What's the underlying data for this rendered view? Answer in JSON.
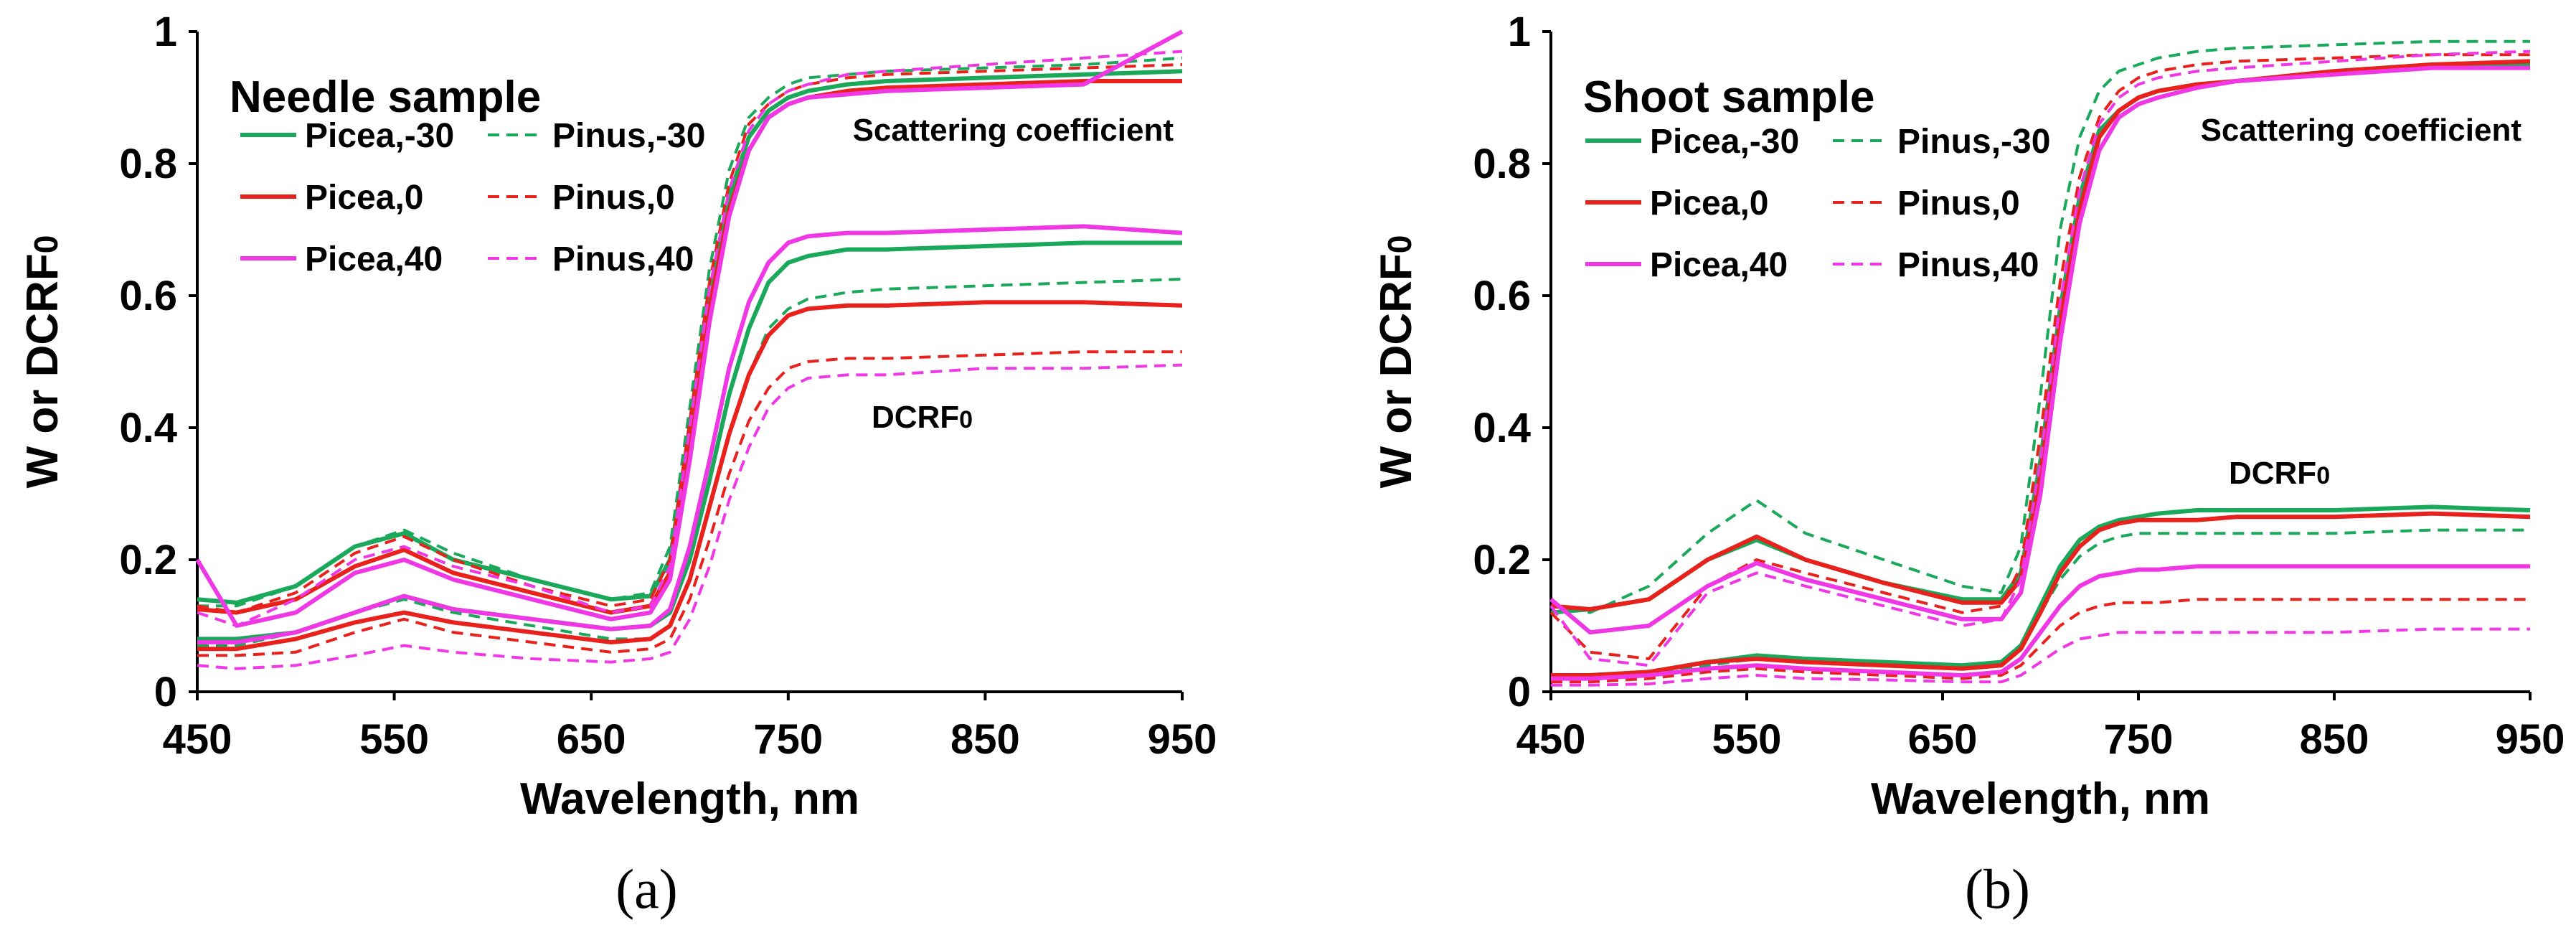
{
  "colors": {
    "Picea,-30": "#1aa85a",
    "Pinus,-30": "#1aa85a",
    "Picea,0": "#e8211c",
    "Pinus,0": "#e8211c",
    "Picea,40": "#f037e6",
    "Pinus,40": "#f037e6"
  },
  "chart_data": [
    {
      "type": "line",
      "panel_label": "(a)",
      "inset_title": "Needle sample",
      "xlabel": "Wavelength, nm",
      "ylabel": "W or DCRF0",
      "xlim": [
        450,
        950
      ],
      "ylim": [
        0,
        1
      ],
      "xticks": [
        "450",
        "550",
        "650",
        "750",
        "850",
        "950"
      ],
      "yticks": [
        "0",
        "0.2",
        "0.4",
        "0.6",
        "0.8",
        "1"
      ],
      "annotations": [
        "Scattering coefficient",
        "DCRF0"
      ],
      "legend": [
        "Picea,-30",
        "Pinus,-30",
        "Picea,0",
        "Pinus,0",
        "Picea,40",
        "Pinus,40"
      ],
      "x": [
        450,
        470,
        500,
        530,
        555,
        580,
        620,
        660,
        680,
        690,
        700,
        710,
        720,
        730,
        740,
        750,
        760,
        780,
        800,
        850,
        900,
        950
      ],
      "series": [
        {
          "name": "Picea,-30",
          "group": "Scattering coefficient",
          "dash": false,
          "values": [
            0.14,
            0.135,
            0.16,
            0.22,
            0.24,
            0.2,
            0.17,
            0.14,
            0.145,
            0.2,
            0.4,
            0.6,
            0.75,
            0.84,
            0.88,
            0.9,
            0.91,
            0.92,
            0.925,
            0.93,
            0.935,
            0.94
          ]
        },
        {
          "name": "Pinus,-30",
          "group": "Scattering coefficient",
          "dash": true,
          "values": [
            0.13,
            0.13,
            0.16,
            0.22,
            0.245,
            0.21,
            0.17,
            0.14,
            0.15,
            0.22,
            0.43,
            0.64,
            0.79,
            0.87,
            0.9,
            0.92,
            0.93,
            0.935,
            0.94,
            0.945,
            0.95,
            0.96
          ]
        },
        {
          "name": "Picea,0",
          "group": "Scattering coefficient",
          "dash": false,
          "values": [
            0.125,
            0.12,
            0.14,
            0.19,
            0.215,
            0.18,
            0.15,
            0.12,
            0.13,
            0.18,
            0.37,
            0.58,
            0.73,
            0.82,
            0.87,
            0.89,
            0.9,
            0.91,
            0.915,
            0.92,
            0.925,
            0.925
          ]
        },
        {
          "name": "Pinus,0",
          "group": "Scattering coefficient",
          "dash": true,
          "values": [
            0.13,
            0.12,
            0.15,
            0.21,
            0.235,
            0.2,
            0.16,
            0.13,
            0.14,
            0.2,
            0.41,
            0.62,
            0.77,
            0.86,
            0.89,
            0.91,
            0.92,
            0.93,
            0.935,
            0.94,
            0.945,
            0.95
          ]
        },
        {
          "name": "Picea,40",
          "group": "Scattering coefficient",
          "dash": false,
          "values": [
            0.2,
            0.1,
            0.12,
            0.18,
            0.2,
            0.17,
            0.14,
            0.11,
            0.12,
            0.17,
            0.35,
            0.56,
            0.72,
            0.82,
            0.87,
            0.89,
            0.9,
            0.905,
            0.91,
            0.915,
            0.92,
            1.0
          ]
        },
        {
          "name": "Pinus,40",
          "group": "Scattering coefficient",
          "dash": true,
          "values": [
            0.12,
            0.1,
            0.14,
            0.2,
            0.22,
            0.19,
            0.16,
            0.12,
            0.13,
            0.19,
            0.4,
            0.61,
            0.76,
            0.85,
            0.89,
            0.91,
            0.92,
            0.935,
            0.94,
            0.95,
            0.96,
            0.97
          ]
        },
        {
          "name": "Picea,-30",
          "group": "DCRF0",
          "dash": false,
          "values": [
            0.08,
            0.08,
            0.09,
            0.12,
            0.145,
            0.125,
            0.11,
            0.095,
            0.1,
            0.12,
            0.2,
            0.32,
            0.45,
            0.55,
            0.62,
            0.65,
            0.66,
            0.67,
            0.67,
            0.675,
            0.68,
            0.68
          ]
        },
        {
          "name": "Pinus,-30",
          "group": "DCRF0",
          "dash": true,
          "values": [
            0.07,
            0.07,
            0.09,
            0.12,
            0.14,
            0.12,
            0.1,
            0.08,
            0.08,
            0.1,
            0.17,
            0.28,
            0.39,
            0.48,
            0.55,
            0.58,
            0.595,
            0.605,
            0.61,
            0.615,
            0.62,
            0.625
          ]
        },
        {
          "name": "Picea,0",
          "group": "DCRF0",
          "dash": false,
          "values": [
            0.065,
            0.065,
            0.08,
            0.105,
            0.12,
            0.105,
            0.09,
            0.075,
            0.08,
            0.1,
            0.17,
            0.28,
            0.39,
            0.48,
            0.54,
            0.57,
            0.58,
            0.585,
            0.585,
            0.59,
            0.59,
            0.585
          ]
        },
        {
          "name": "Pinus,0",
          "group": "DCRF0",
          "dash": true,
          "values": [
            0.055,
            0.055,
            0.06,
            0.09,
            0.11,
            0.09,
            0.075,
            0.06,
            0.065,
            0.08,
            0.14,
            0.23,
            0.33,
            0.41,
            0.46,
            0.49,
            0.5,
            0.505,
            0.505,
            0.51,
            0.515,
            0.515
          ]
        },
        {
          "name": "Picea,40",
          "group": "DCRF0",
          "dash": false,
          "values": [
            0.075,
            0.075,
            0.09,
            0.12,
            0.145,
            0.125,
            0.11,
            0.095,
            0.1,
            0.125,
            0.22,
            0.35,
            0.49,
            0.59,
            0.65,
            0.68,
            0.69,
            0.695,
            0.695,
            0.7,
            0.705,
            0.695
          ]
        },
        {
          "name": "Pinus,40",
          "group": "DCRF0",
          "dash": true,
          "values": [
            0.04,
            0.035,
            0.04,
            0.055,
            0.07,
            0.06,
            0.05,
            0.045,
            0.05,
            0.06,
            0.11,
            0.19,
            0.29,
            0.37,
            0.43,
            0.46,
            0.475,
            0.48,
            0.48,
            0.49,
            0.49,
            0.495
          ]
        }
      ]
    },
    {
      "type": "line",
      "panel_label": "(b)",
      "inset_title": "Shoot sample",
      "xlabel": "Wavelength, nm",
      "ylabel": "W or DCRF0",
      "xlim": [
        450,
        950
      ],
      "ylim": [
        0,
        1
      ],
      "xticks": [
        "450",
        "550",
        "650",
        "750",
        "850",
        "950"
      ],
      "yticks": [
        "0",
        "0.2",
        "0.4",
        "0.6",
        "0.8",
        "1"
      ],
      "annotations": [
        "Scattering coefficient",
        "DCRF0"
      ],
      "legend": [
        "Picea,-30",
        "Pinus,-30",
        "Picea,0",
        "Pinus,0",
        "Picea,40",
        "Pinus,40"
      ],
      "x": [
        450,
        470,
        500,
        530,
        555,
        580,
        620,
        660,
        680,
        690,
        700,
        710,
        720,
        730,
        740,
        750,
        760,
        780,
        800,
        850,
        900,
        950
      ],
      "series": [
        {
          "name": "Picea,-30",
          "group": "Scattering coefficient",
          "dash": false,
          "values": [
            0.12,
            0.125,
            0.14,
            0.2,
            0.23,
            0.2,
            0.165,
            0.14,
            0.14,
            0.18,
            0.35,
            0.58,
            0.75,
            0.85,
            0.88,
            0.9,
            0.91,
            0.92,
            0.925,
            0.94,
            0.95,
            0.95
          ]
        },
        {
          "name": "Pinus,-30",
          "group": "Scattering coefficient",
          "dash": true,
          "values": [
            0.13,
            0.12,
            0.16,
            0.24,
            0.29,
            0.24,
            0.2,
            0.16,
            0.15,
            0.22,
            0.45,
            0.7,
            0.84,
            0.91,
            0.94,
            0.95,
            0.96,
            0.97,
            0.975,
            0.98,
            0.985,
            0.985
          ]
        },
        {
          "name": "Picea,0",
          "group": "Scattering coefficient",
          "dash": false,
          "values": [
            0.13,
            0.125,
            0.14,
            0.2,
            0.235,
            0.2,
            0.165,
            0.135,
            0.135,
            0.17,
            0.33,
            0.56,
            0.73,
            0.84,
            0.88,
            0.9,
            0.91,
            0.92,
            0.925,
            0.94,
            0.95,
            0.955
          ]
        },
        {
          "name": "Pinus,0",
          "group": "Scattering coefficient",
          "dash": true,
          "values": [
            0.12,
            0.06,
            0.05,
            0.16,
            0.2,
            0.18,
            0.15,
            0.12,
            0.13,
            0.19,
            0.39,
            0.62,
            0.78,
            0.87,
            0.91,
            0.93,
            0.94,
            0.95,
            0.955,
            0.96,
            0.965,
            0.965
          ]
        },
        {
          "name": "Picea,40",
          "group": "Scattering coefficient",
          "dash": false,
          "values": [
            0.14,
            0.09,
            0.1,
            0.16,
            0.195,
            0.17,
            0.14,
            0.11,
            0.11,
            0.15,
            0.3,
            0.53,
            0.71,
            0.82,
            0.87,
            0.89,
            0.9,
            0.915,
            0.925,
            0.935,
            0.945,
            0.945
          ]
        },
        {
          "name": "Pinus,40",
          "group": "Scattering coefficient",
          "dash": true,
          "values": [
            0.13,
            0.05,
            0.04,
            0.15,
            0.18,
            0.16,
            0.13,
            0.1,
            0.11,
            0.17,
            0.35,
            0.59,
            0.76,
            0.86,
            0.9,
            0.92,
            0.93,
            0.94,
            0.945,
            0.955,
            0.965,
            0.97
          ]
        },
        {
          "name": "Picea,-30",
          "group": "DCRF0",
          "dash": false,
          "values": [
            0.025,
            0.025,
            0.03,
            0.045,
            0.055,
            0.05,
            0.045,
            0.04,
            0.045,
            0.07,
            0.13,
            0.19,
            0.23,
            0.25,
            0.26,
            0.265,
            0.27,
            0.275,
            0.275,
            0.275,
            0.28,
            0.275
          ]
        },
        {
          "name": "Pinus,-30",
          "group": "DCRF0",
          "dash": true,
          "values": [
            0.02,
            0.02,
            0.025,
            0.04,
            0.05,
            0.045,
            0.04,
            0.035,
            0.04,
            0.065,
            0.12,
            0.17,
            0.205,
            0.225,
            0.235,
            0.24,
            0.24,
            0.24,
            0.24,
            0.24,
            0.245,
            0.245
          ]
        },
        {
          "name": "Picea,0",
          "group": "DCRF0",
          "dash": false,
          "values": [
            0.025,
            0.025,
            0.03,
            0.045,
            0.05,
            0.045,
            0.04,
            0.035,
            0.04,
            0.065,
            0.12,
            0.18,
            0.22,
            0.245,
            0.255,
            0.26,
            0.26,
            0.26,
            0.265,
            0.265,
            0.27,
            0.265
          ]
        },
        {
          "name": "Pinus,0",
          "group": "DCRF0",
          "dash": true,
          "values": [
            0.015,
            0.015,
            0.02,
            0.03,
            0.035,
            0.03,
            0.025,
            0.02,
            0.025,
            0.04,
            0.07,
            0.1,
            0.12,
            0.13,
            0.135,
            0.135,
            0.135,
            0.14,
            0.14,
            0.14,
            0.14,
            0.14
          ]
        },
        {
          "name": "Picea,40",
          "group": "DCRF0",
          "dash": false,
          "values": [
            0.02,
            0.02,
            0.025,
            0.035,
            0.04,
            0.035,
            0.03,
            0.025,
            0.03,
            0.05,
            0.09,
            0.13,
            0.16,
            0.175,
            0.18,
            0.185,
            0.185,
            0.19,
            0.19,
            0.19,
            0.19,
            0.19
          ]
        },
        {
          "name": "Pinus,40",
          "group": "DCRF0",
          "dash": true,
          "values": [
            0.01,
            0.01,
            0.012,
            0.02,
            0.025,
            0.02,
            0.018,
            0.015,
            0.015,
            0.025,
            0.045,
            0.065,
            0.08,
            0.085,
            0.09,
            0.09,
            0.09,
            0.09,
            0.09,
            0.09,
            0.095,
            0.095
          ]
        }
      ]
    }
  ]
}
